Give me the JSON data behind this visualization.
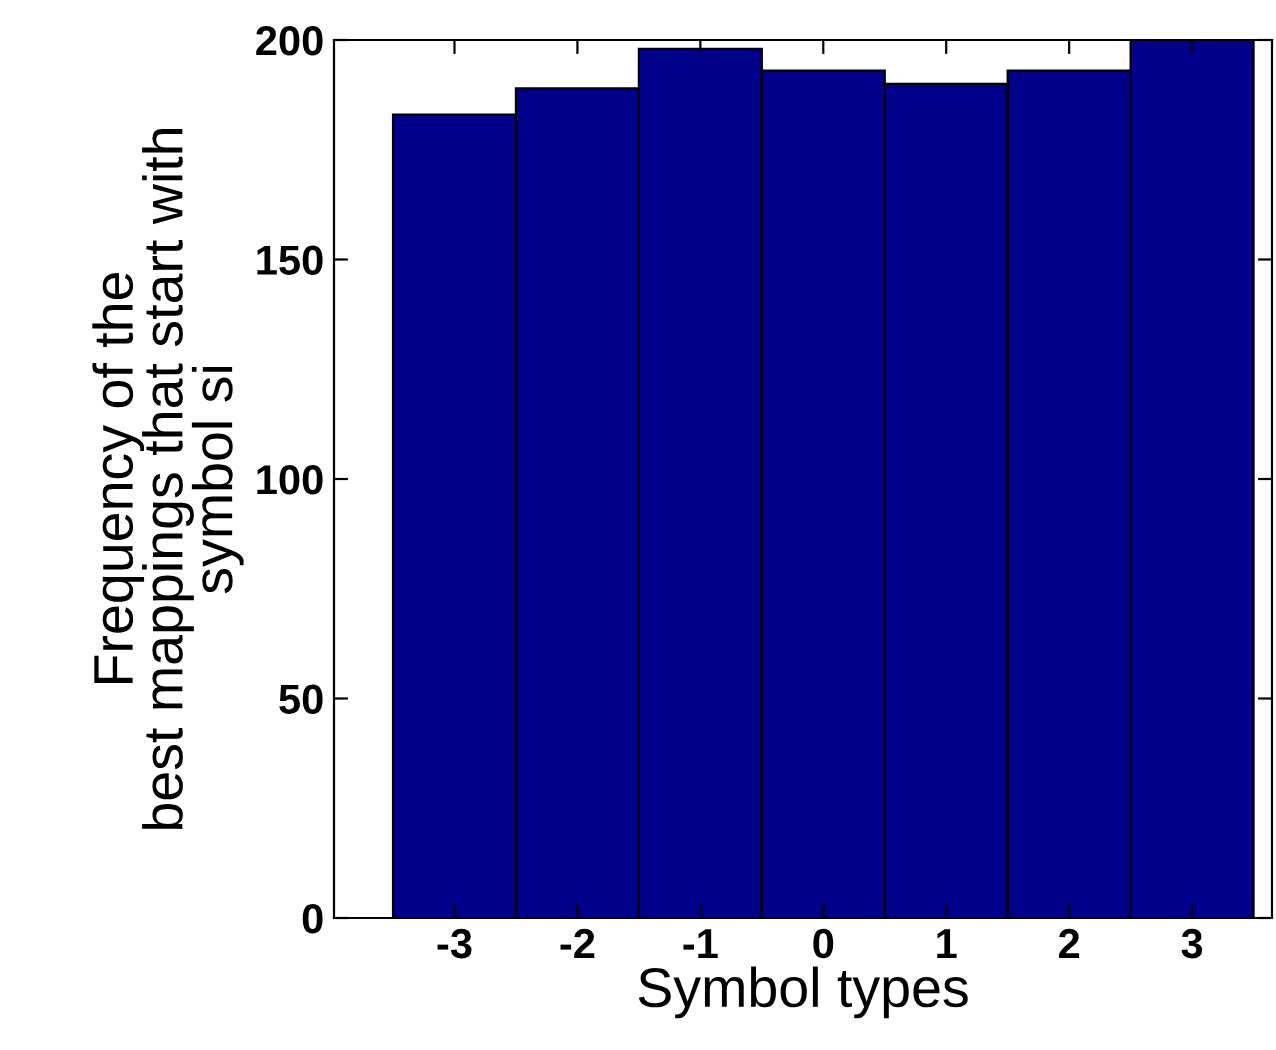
{
  "chart_data": {
    "type": "bar",
    "xlabel": "Symbol types",
    "ylabel": "Frequency of the\nbest mappings that start with\nsymbol si",
    "categories": [
      "-3",
      "-2",
      "-1",
      "0",
      "1",
      "2",
      "3"
    ],
    "values": [
      183,
      189,
      198,
      193,
      190,
      193,
      200
    ],
    "color": "#00008b",
    "ylim": [
      0,
      200
    ],
    "yticks": [
      0,
      50,
      100,
      150,
      200
    ],
    "grid": false
  }
}
